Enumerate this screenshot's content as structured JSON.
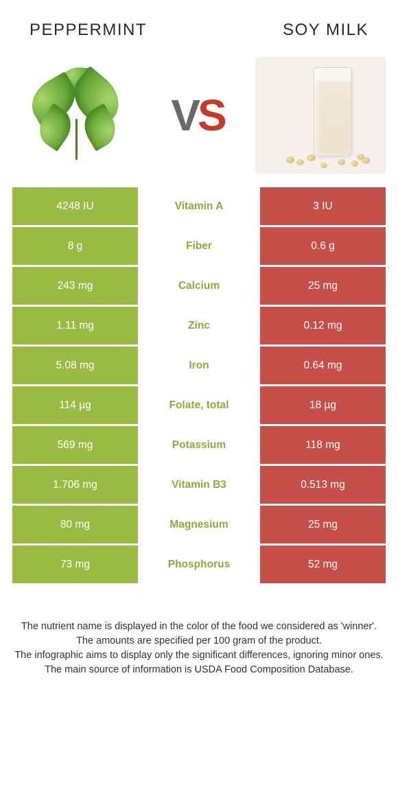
{
  "titles": {
    "left": "PEPPERMINT",
    "right": "SOY MILK"
  },
  "vs": {
    "v": "V",
    "s": "S"
  },
  "colors": {
    "left_cell": "#99bb44",
    "right_cell": "#c74f4a",
    "nutrient_text": "#8aad3a",
    "cell_text": "#ffffff"
  },
  "rows": [
    {
      "left": "4248 IU",
      "nutrient": "Vitamin A",
      "right": "3 IU"
    },
    {
      "left": "8 g",
      "nutrient": "Fiber",
      "right": "0.6 g"
    },
    {
      "left": "243 mg",
      "nutrient": "Calcium",
      "right": "25 mg"
    },
    {
      "left": "1.11 mg",
      "nutrient": "Zinc",
      "right": "0.12 mg"
    },
    {
      "left": "5.08 mg",
      "nutrient": "Iron",
      "right": "0.64 mg"
    },
    {
      "left": "114 µg",
      "nutrient": "Folate, total",
      "right": "18 µg"
    },
    {
      "left": "569 mg",
      "nutrient": "Potassium",
      "right": "118 mg"
    },
    {
      "left": "1.706 mg",
      "nutrient": "Vitamin B3",
      "right": "0.513 mg"
    },
    {
      "left": "80 mg",
      "nutrient": "Magnesium",
      "right": "25 mg"
    },
    {
      "left": "73 mg",
      "nutrient": "Phosphorus",
      "right": "52 mg"
    }
  ],
  "footnote": {
    "l1": "The nutrient name is displayed in the color of the food we considered as 'winner'.",
    "l2": "The amounts are specified per 100 gram of the product.",
    "l3": "The infographic aims to display only the significant differences, ignoring minor ones.",
    "l4": "The main source of information is USDA Food Composition Database."
  }
}
